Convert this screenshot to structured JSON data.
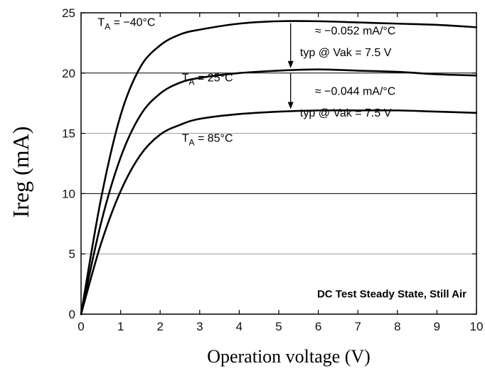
{
  "chart_data": {
    "type": "line",
    "title": "",
    "xlabel": "Operation voltage (V)",
    "ylabel": "Ireg (mA)",
    "xlim": [
      0,
      10
    ],
    "ylim": [
      0,
      25
    ],
    "x_ticks": [
      0,
      1,
      2,
      3,
      4,
      5,
      6,
      7,
      8,
      9,
      10
    ],
    "y_ticks": [
      0,
      5,
      10,
      15,
      20,
      25
    ],
    "grid": "horizontal",
    "legend": "none",
    "series": [
      {
        "name": "T_A = −40°C",
        "label_main": "T",
        "label_sub": "A",
        "label_rest": " = −40°C",
        "x": [
          0,
          0.5,
          1,
          1.5,
          2,
          2.5,
          3,
          4,
          5,
          6,
          7,
          8,
          9,
          10
        ],
        "y": [
          0,
          9.5,
          16.5,
          20.5,
          22.3,
          23.2,
          23.6,
          24.1,
          24.3,
          24.3,
          24.2,
          24.1,
          24.0,
          23.8
        ]
      },
      {
        "name": "T_A = 25°C",
        "label_main": "T",
        "label_sub": "A",
        "label_rest": " = 25°C",
        "x": [
          0,
          0.5,
          1,
          1.5,
          2,
          2.5,
          3,
          4,
          5,
          6,
          7,
          8,
          9,
          10
        ],
        "y": [
          0,
          7.5,
          13,
          16.5,
          18.3,
          19.2,
          19.6,
          20.0,
          20.2,
          20.3,
          20.2,
          20.1,
          19.9,
          19.8
        ]
      },
      {
        "name": "T_A = 85°C",
        "label_main": "T",
        "label_sub": "A",
        "label_rest": " = 85°C",
        "x": [
          0,
          0.5,
          1,
          1.5,
          2,
          2.5,
          3,
          4,
          5,
          6,
          7,
          8,
          9,
          10
        ],
        "y": [
          0,
          5.8,
          10.2,
          13.2,
          14.9,
          15.7,
          16.2,
          16.6,
          16.8,
          16.9,
          16.9,
          16.9,
          16.8,
          16.7
        ]
      }
    ],
    "annotations": [
      {
        "line1": "≈ −0.052 mA/°C",
        "line2": "typ @ Vak = 7.5 V"
      },
      {
        "line1": "≈ −0.044 mA/°C",
        "line2": "typ @ Vak = 7.5 V"
      }
    ],
    "note": "DC Test Steady State, Still Air",
    "colors": {
      "curve": "#000000",
      "grid": "#9a9a9a",
      "frame": "#000000"
    }
  }
}
